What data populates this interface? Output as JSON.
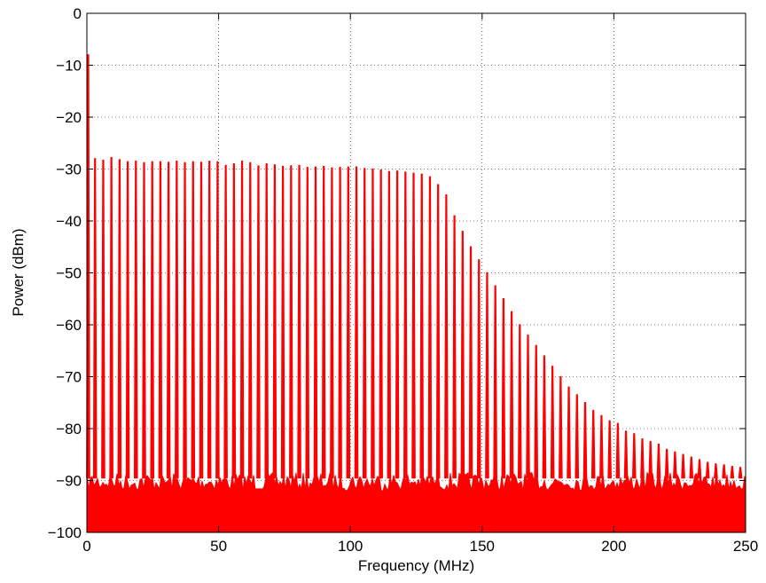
{
  "chart_data": {
    "type": "line",
    "title": "",
    "xlabel": "Frequency (MHz)",
    "ylabel": "Power (dBm)",
    "xlim": [
      0,
      250
    ],
    "ylim": [
      -100,
      0
    ],
    "xticks": [
      0,
      50,
      100,
      150,
      200,
      250
    ],
    "yticks": [
      0,
      -10,
      -20,
      -30,
      -40,
      -50,
      -60,
      -70,
      -80,
      -90,
      -100
    ],
    "xtick_labels": [
      "0",
      "50",
      "100",
      "150",
      "200",
      "250"
    ],
    "ytick_labels": [
      "0",
      "−10",
      "−20",
      "−30",
      "−40",
      "−50",
      "−60",
      "−70",
      "−80",
      "−90",
      "−100"
    ],
    "grid": true,
    "grid_style": "dotted",
    "line_color": "#ff0000",
    "noise_floor": [
      -100,
      -88.5
    ],
    "series": [
      {
        "x": [
          0.5,
          3.1,
          6.2,
          9.3,
          12.4,
          15.5,
          18.6,
          21.7,
          24.8,
          27.9,
          31.0,
          34.1,
          37.2,
          40.3,
          43.4,
          46.5,
          49.6,
          52.7,
          55.8,
          58.9,
          62.0,
          65.1,
          68.2,
          71.3,
          74.4,
          77.5,
          80.6,
          83.7,
          86.8,
          89.9,
          93.0,
          96.1,
          99.2,
          102.3,
          105.4,
          108.5,
          111.6,
          114.7,
          117.8,
          120.9,
          124.0,
          127.1,
          130.2,
          133.3,
          136.4,
          139.5,
          142.6,
          145.7,
          148.8,
          151.9,
          155.0,
          158.1,
          161.2,
          164.3,
          167.4,
          170.5,
          173.6,
          176.7,
          179.8,
          182.9,
          186.0,
          189.1,
          192.2,
          195.3,
          198.4,
          201.5,
          204.6,
          207.7,
          210.8,
          213.9,
          217.0,
          220.1,
          223.2,
          226.3,
          229.4,
          232.5,
          235.6,
          238.7,
          241.8,
          244.9,
          248.0
        ],
        "y": [
          -8,
          -28,
          -28.3,
          -27.8,
          -28.2,
          -28.6,
          -28.5,
          -28.8,
          -28.6,
          -28.6,
          -28.7,
          -28.5,
          -28.8,
          -28.6,
          -28.7,
          -28.5,
          -28.6,
          -29.3,
          -29.0,
          -28.5,
          -28.8,
          -29.4,
          -29.0,
          -29.2,
          -29.5,
          -29.4,
          -29.3,
          -29.7,
          -29.6,
          -29.5,
          -29.8,
          -29.7,
          -29.6,
          -29.6,
          -29.9,
          -30.0,
          -30.2,
          -30.5,
          -30.4,
          -30.6,
          -30.8,
          -31.0,
          -31.5,
          -33.0,
          -35.0,
          -39.0,
          -42.0,
          -45.0,
          -47.5,
          -50.0,
          -52.5,
          -55.0,
          -57.5,
          -60.0,
          -62.0,
          -64.0,
          -66.0,
          -68.0,
          -70.0,
          -72.0,
          -73.5,
          -75.0,
          -76.5,
          -77.5,
          -78.5,
          -79.0,
          -80.5,
          -81.0,
          -82.0,
          -82.5,
          -83.0,
          -84.0,
          -84.5,
          -85.0,
          -85.5,
          -86.0,
          -86.5,
          -86.8,
          -87.0,
          -87.3,
          -87.5
        ]
      }
    ]
  }
}
